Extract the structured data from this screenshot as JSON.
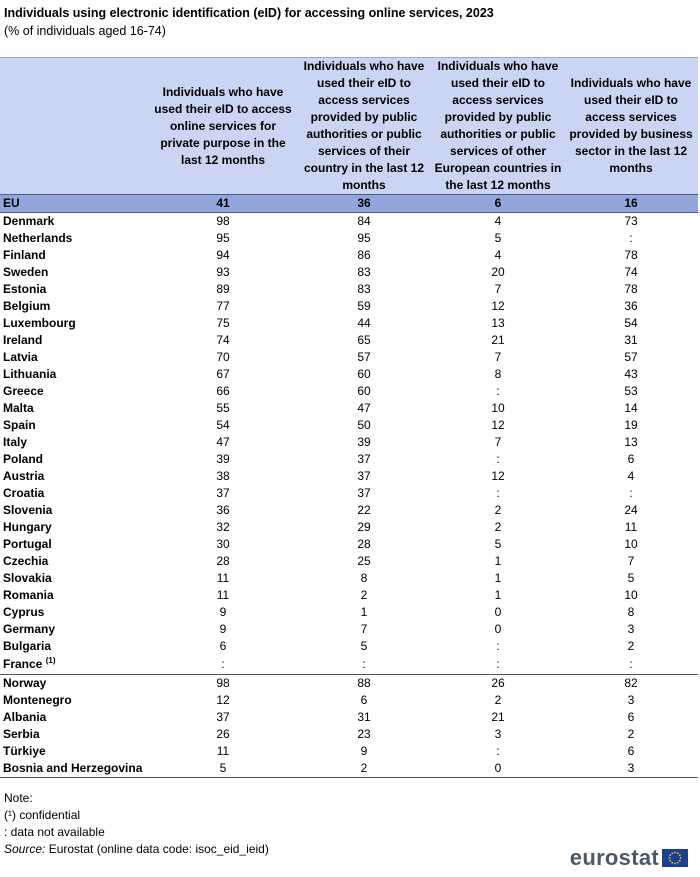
{
  "title": "Individuals using electronic identification (eID) for accessing online services, 2023",
  "subtitle": "(% of individuals aged 16-74)",
  "table": {
    "headers": [
      "",
      "Individuals who have used their eID to access online services for private purpose in the last 12 months",
      "Individuals who have used their eID to access services provided by public authorities or public services of their country in the last 12 months",
      "Individuals who have used their eID to access services provided by public authorities or public services of other European countries in the last 12 months",
      "Individuals who have used their eID to access services provided by business sector in the last 12 months"
    ],
    "rows": [
      {
        "name": "EU",
        "values": [
          "41",
          "36",
          "6",
          "16"
        ]
      },
      {
        "name": "Denmark",
        "values": [
          "98",
          "84",
          "4",
          "73"
        ]
      },
      {
        "name": "Netherlands",
        "values": [
          "95",
          "95",
          "5",
          ":"
        ]
      },
      {
        "name": "Finland",
        "values": [
          "94",
          "86",
          "4",
          "78"
        ]
      },
      {
        "name": "Sweden",
        "values": [
          "93",
          "83",
          "20",
          "74"
        ]
      },
      {
        "name": "Estonia",
        "values": [
          "89",
          "83",
          "7",
          "78"
        ]
      },
      {
        "name": "Belgium",
        "values": [
          "77",
          "59",
          "12",
          "36"
        ]
      },
      {
        "name": "Luxembourg",
        "values": [
          "75",
          "44",
          "13",
          "54"
        ]
      },
      {
        "name": "Ireland",
        "values": [
          "74",
          "65",
          "21",
          "31"
        ]
      },
      {
        "name": "Latvia",
        "values": [
          "70",
          "57",
          "7",
          "57"
        ]
      },
      {
        "name": "Lithuania",
        "values": [
          "67",
          "60",
          "8",
          "43"
        ]
      },
      {
        "name": "Greece",
        "values": [
          "66",
          "60",
          ":",
          "53"
        ]
      },
      {
        "name": "Malta",
        "values": [
          "55",
          "47",
          "10",
          "14"
        ]
      },
      {
        "name": "Spain",
        "values": [
          "54",
          "50",
          "12",
          "19"
        ]
      },
      {
        "name": "Italy",
        "values": [
          "47",
          "39",
          "7",
          "13"
        ]
      },
      {
        "name": "Poland",
        "values": [
          "39",
          "37",
          ":",
          "6"
        ]
      },
      {
        "name": "Austria",
        "values": [
          "38",
          "37",
          "12",
          "4"
        ]
      },
      {
        "name": "Croatia",
        "values": [
          "37",
          "37",
          ":",
          ":"
        ]
      },
      {
        "name": "Slovenia",
        "values": [
          "36",
          "22",
          "2",
          "24"
        ]
      },
      {
        "name": "Hungary",
        "values": [
          "32",
          "29",
          "2",
          "11"
        ]
      },
      {
        "name": "Portugal",
        "values": [
          "30",
          "28",
          "5",
          "10"
        ]
      },
      {
        "name": "Czechia",
        "values": [
          "28",
          "25",
          "1",
          "7"
        ]
      },
      {
        "name": "Slovakia",
        "values": [
          "11",
          "8",
          "1",
          "5"
        ]
      },
      {
        "name": "Romania",
        "values": [
          "11",
          "2",
          "1",
          "10"
        ]
      },
      {
        "name": "Cyprus",
        "values": [
          "9",
          "1",
          "0",
          "8"
        ]
      },
      {
        "name": "Germany",
        "values": [
          "9",
          "7",
          "0",
          "3"
        ]
      },
      {
        "name": "Bulgaria",
        "values": [
          "6",
          "5",
          ":",
          "2"
        ]
      },
      {
        "name": "France",
        "sup": "(1)",
        "values": [
          ":",
          ":",
          ":",
          ":"
        ]
      },
      {
        "name": "Norway",
        "values": [
          "98",
          "88",
          "26",
          "82"
        ]
      },
      {
        "name": "Montenegro",
        "values": [
          "12",
          "6",
          "2",
          "3"
        ]
      },
      {
        "name": "Albania",
        "values": [
          "37",
          "31",
          "21",
          "6"
        ]
      },
      {
        "name": "Serbia",
        "values": [
          "26",
          "23",
          "3",
          "2"
        ]
      },
      {
        "name": "Türkiye",
        "values": [
          "11",
          "9",
          ":",
          "6"
        ]
      },
      {
        "name": "Bosnia and Herzegovina",
        "values": [
          "5",
          "2",
          "0",
          "3"
        ]
      }
    ]
  },
  "notes": {
    "label": "Note:",
    "items": [
      "(¹) confidential",
      ": data not available"
    ],
    "source_label": "Source:",
    "source_text": " Eurostat (online data code: isoc_eid_ieid)"
  },
  "logo": {
    "text": "eurostat",
    "flag_icon": "eu-flag-icon",
    "flag_color": "#1d3e96"
  }
}
